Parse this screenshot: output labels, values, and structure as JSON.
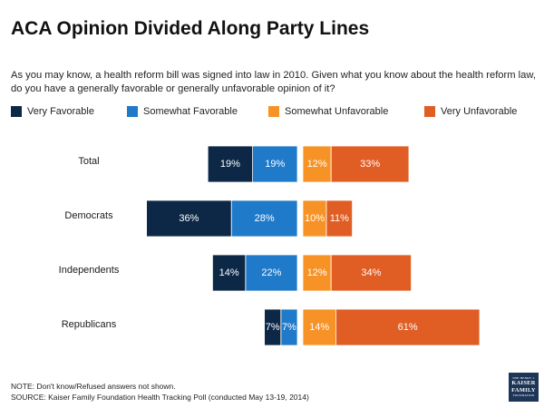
{
  "title": "ACA Opinion Divided Along Party Lines",
  "subtitle": "As you may know, a health reform bill was signed into law in 2010. Given what you know about the health reform law, do you have a generally favorable or generally unfavorable opinion of it?",
  "legend": [
    {
      "label": "Very Favorable",
      "color": "#0d2847"
    },
    {
      "label": "Somewhat Favorable",
      "color": "#1f7ac9"
    },
    {
      "label": "Somewhat Unfavorable",
      "color": "#f79326"
    },
    {
      "label": "Very Unfavorable",
      "color": "#e05d24"
    }
  ],
  "chart_data": {
    "type": "bar",
    "orientation": "horizontal-diverging",
    "categories": [
      "Total",
      "Democrats",
      "Independents",
      "Republicans"
    ],
    "series": [
      {
        "name": "Very Favorable",
        "values": [
          19,
          36,
          14,
          7
        ],
        "labels": [
          "19%",
          "36%",
          "14%",
          "7%"
        ],
        "color": "#0d2847",
        "side": "favorable"
      },
      {
        "name": "Somewhat Favorable",
        "values": [
          19,
          28,
          22,
          7
        ],
        "labels": [
          "19%",
          "28%",
          "22%",
          "7%"
        ],
        "color": "#1f7ac9",
        "side": "favorable"
      },
      {
        "name": "Somewhat Unfavorable",
        "values": [
          12,
          10,
          12,
          14
        ],
        "labels": [
          "12%",
          "10%",
          "12%",
          "14%"
        ],
        "color": "#f79326",
        "side": "unfavorable"
      },
      {
        "name": "Very Unfavorable",
        "values": [
          33,
          11,
          34,
          61
        ],
        "labels": [
          "33%",
          "11%",
          "34%",
          "61%"
        ],
        "color": "#e05d24",
        "side": "unfavorable"
      }
    ],
    "unit": "%",
    "title": "ACA Opinion Divided Along Party Lines"
  },
  "footnotes": {
    "note": "NOTE: Don't know/Refused answers not shown.",
    "source": "SOURCE: Kaiser Family Foundation Health Tracking Poll (conducted May 13-19, 2014)"
  },
  "logo": {
    "top": "THE HENRY J.",
    "main1": "KAISER",
    "main2": "FAMILY",
    "bottom": "FOUNDATION"
  }
}
